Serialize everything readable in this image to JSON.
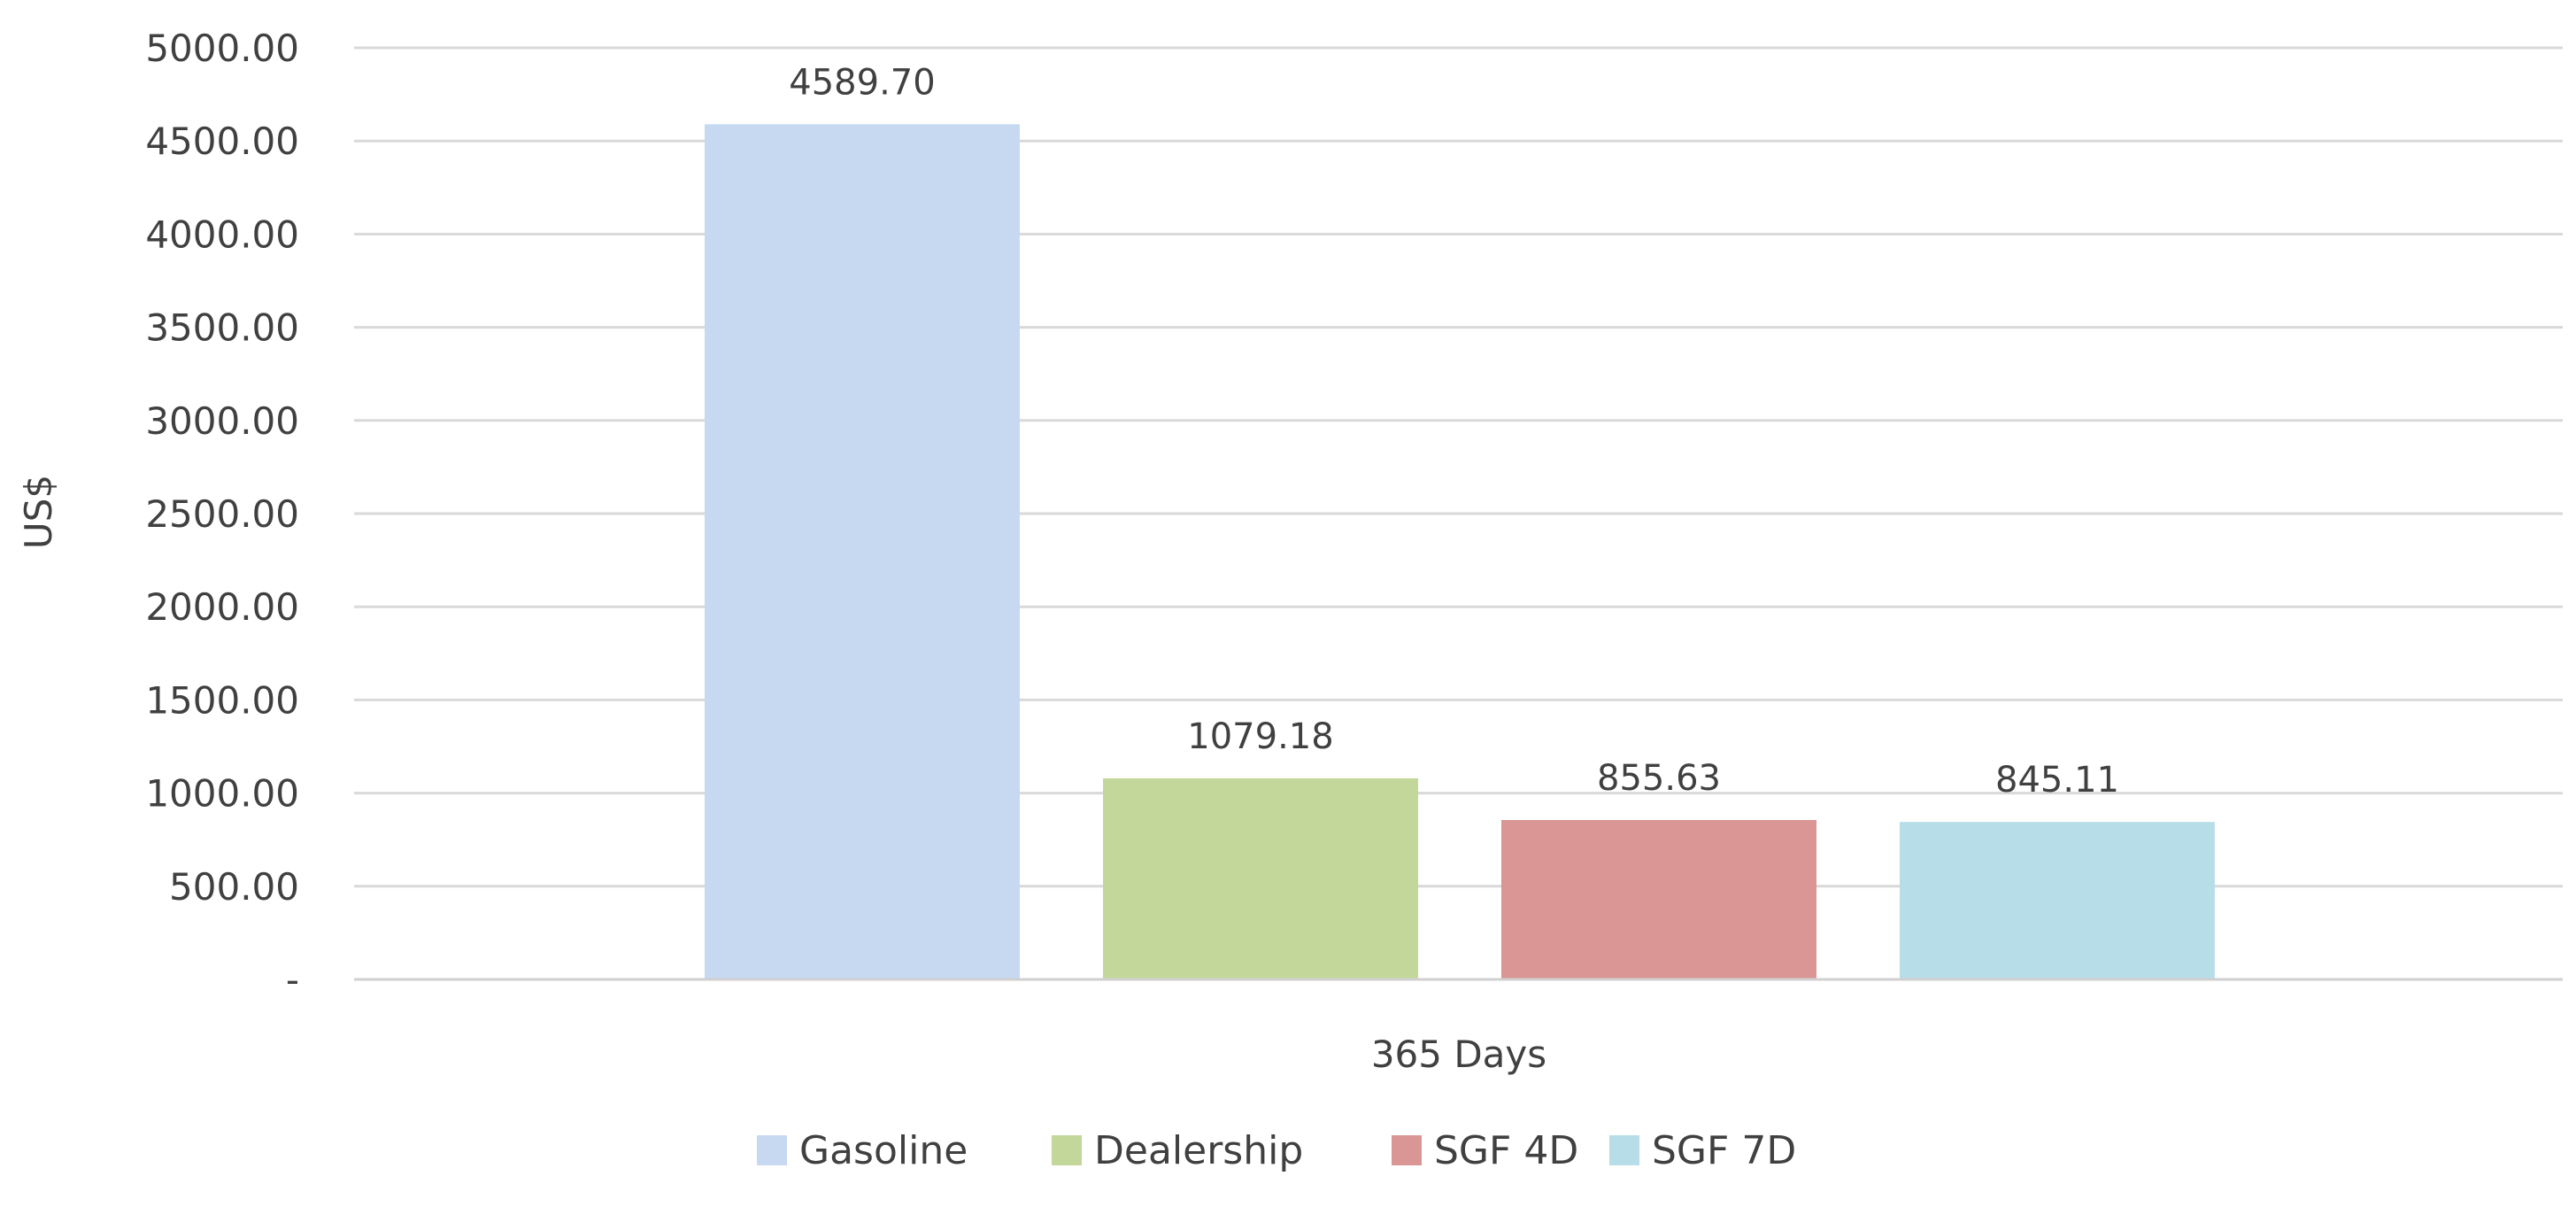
{
  "chart_data": {
    "type": "bar",
    "title": "",
    "xlabel": "",
    "ylabel": "US$",
    "categories": [
      "365 Days"
    ],
    "series": [
      {
        "name": "Gasoline",
        "values": [
          4589.7
        ],
        "label": "4589.70",
        "color": "#c6d9f1"
      },
      {
        "name": "Dealership",
        "values": [
          1079.18
        ],
        "label": "1079.18",
        "color": "#c4d79b"
      },
      {
        "name": "SGF 4D",
        "values": [
          855.63
        ],
        "label": "855.63",
        "color": "#da9694"
      },
      {
        "name": "SGF 7D",
        "values": [
          845.11
        ],
        "label": "845.11",
        "color": "#b7dee8"
      }
    ],
    "ylim": [
      0,
      5000
    ],
    "yticks": [
      0,
      500,
      1000,
      1500,
      2000,
      2500,
      3000,
      3500,
      4000,
      4500,
      5000
    ],
    "ytick_labels": [
      "-",
      "500.00",
      "1000.00",
      "1500.00",
      "2000.00",
      "2500.00",
      "3000.00",
      "3500.00",
      "4000.00",
      "4500.00",
      "5000.00"
    ],
    "grid": true,
    "legend_position": "bottom"
  }
}
